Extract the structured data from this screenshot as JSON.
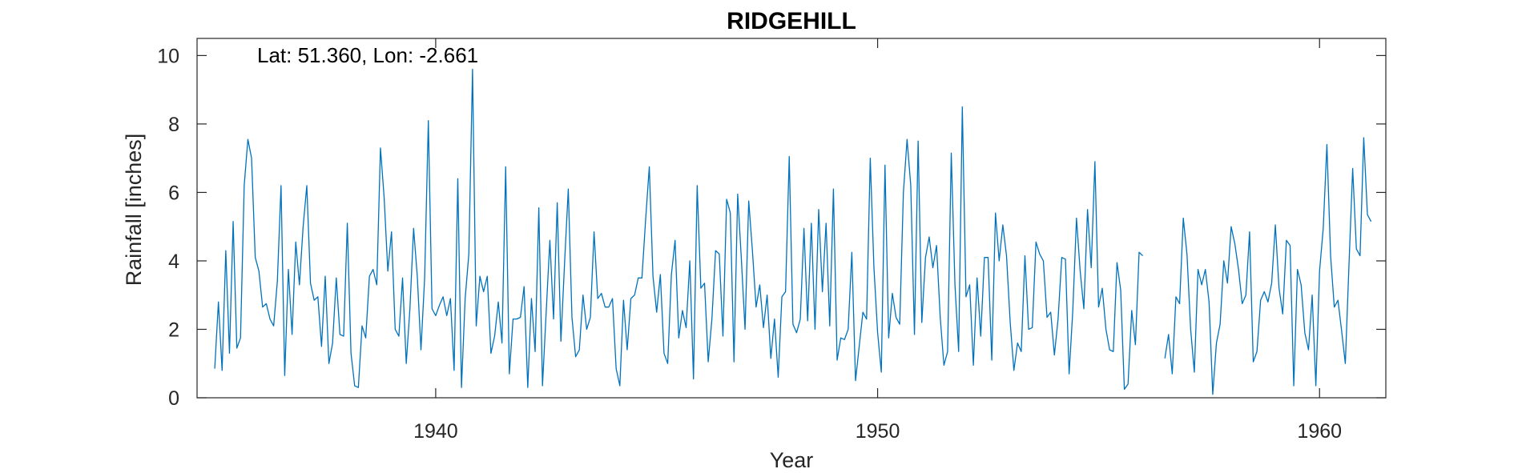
{
  "chart_data": {
    "type": "line",
    "title": "RIDGEHILL",
    "xlabel": "Year",
    "ylabel": "Rainfall [inches]",
    "annotation": "Lat: 51.360, Lon: -2.661",
    "xlim": [
      1934.6,
      1961.5
    ],
    "ylim": [
      0,
      10.5
    ],
    "xticks": [
      1940,
      1950,
      1960
    ],
    "yticks": [
      0,
      2,
      4,
      6,
      8,
      10
    ],
    "grid": false,
    "line_color": "#0072BD",
    "start_year": 1935,
    "step": "monthly",
    "series": [
      {
        "values": [
          0.85,
          2.8,
          0.8,
          4.3,
          1.3,
          5.15,
          1.45,
          1.75,
          6.2,
          7.55,
          7.0,
          4.1,
          3.7,
          2.65,
          2.75,
          2.3,
          2.1,
          3.4,
          6.2,
          0.65,
          3.75,
          1.85,
          4.55,
          3.3,
          5.0,
          6.2,
          3.35,
          2.85,
          2.95,
          1.5,
          3.55,
          1.0,
          1.6,
          3.5,
          1.85,
          1.8,
          5.1,
          1.3,
          0.35,
          0.3,
          2.1,
          1.75,
          3.55,
          3.75,
          3.3,
          7.3,
          5.85,
          3.7,
          4.85,
          2.0,
          1.8,
          3.5,
          1.0,
          2.6,
          4.95,
          3.55,
          1.4,
          3.5,
          8.1,
          2.6,
          2.4,
          2.7,
          2.95,
          2.4,
          2.9,
          0.8,
          6.4,
          0.3,
          2.9,
          4.2,
          9.6,
          2.1,
          3.55,
          3.1,
          3.55,
          1.3,
          1.8,
          2.8,
          1.6,
          6.75,
          0.7,
          2.3,
          2.3,
          2.35,
          3.25,
          0.3,
          2.9,
          1.35,
          5.55,
          0.35,
          2.5,
          4.6,
          2.3,
          5.7,
          1.65,
          3.95,
          6.1,
          2.35,
          1.2,
          1.4,
          3.0,
          2.0,
          2.35,
          4.85,
          2.9,
          3.05,
          2.65,
          2.65,
          2.9,
          0.85,
          0.35,
          2.85,
          1.4,
          2.9,
          3.0,
          3.5,
          3.5,
          5.2,
          6.75,
          3.55,
          2.5,
          3.6,
          1.3,
          1.0,
          3.6,
          4.6,
          1.75,
          2.55,
          2.05,
          4.0,
          0.55,
          6.2,
          3.2,
          3.35,
          1.05,
          2.3,
          4.3,
          4.2,
          1.8,
          5.8,
          5.4,
          1.05,
          5.95,
          4.05,
          2.0,
          5.75,
          4.3,
          2.65,
          3.3,
          2.05,
          3.0,
          1.15,
          2.3,
          0.6,
          2.95,
          3.1,
          7.05,
          2.15,
          1.9,
          2.3,
          4.95,
          2.25,
          5.1,
          2.0,
          5.5,
          3.1,
          5.1,
          2.1,
          6.1,
          1.1,
          1.75,
          1.7,
          2.0,
          4.25,
          0.5,
          1.5,
          2.5,
          2.3,
          7.0,
          3.8,
          1.9,
          0.75,
          6.8,
          1.75,
          3.05,
          2.35,
          2.15,
          6.0,
          7.55,
          6.2,
          1.85,
          7.5,
          2.2,
          4.1,
          4.7,
          3.8,
          4.45,
          2.35,
          0.95,
          1.35,
          7.15,
          3.3,
          1.35,
          8.5,
          2.95,
          3.3,
          0.95,
          3.5,
          1.8,
          4.1,
          4.1,
          1.1,
          5.4,
          4.0,
          5.05,
          4.15,
          2.2,
          0.8,
          1.6,
          1.35,
          4.15,
          2.0,
          2.05,
          4.55,
          4.2,
          4.0,
          2.35,
          2.5,
          1.25,
          2.3,
          4.1,
          4.05,
          0.7,
          2.55,
          5.25,
          3.7,
          2.6,
          5.5,
          3.8,
          6.9,
          2.65,
          3.2,
          2.0,
          1.4,
          1.35,
          3.95,
          3.15,
          0.25,
          0.4,
          2.55,
          1.55,
          4.25,
          4.15,
          null,
          null,
          null,
          null,
          null,
          1.15,
          1.85,
          0.7,
          2.95,
          2.75,
          5.25,
          4.2,
          2.0,
          0.75,
          3.75,
          3.3,
          3.75,
          2.8,
          0.1,
          1.6,
          2.15,
          4.0,
          3.35,
          5.0,
          4.5,
          3.75,
          2.75,
          3.0,
          4.85,
          1.05,
          1.35,
          2.85,
          3.1,
          2.8,
          3.35,
          5.05,
          3.2,
          2.45,
          4.6,
          4.45,
          0.35,
          3.75,
          3.3,
          1.9,
          1.4,
          3.0,
          0.35,
          3.7,
          4.95,
          7.4,
          4.15,
          2.65,
          2.85,
          1.95,
          1.0,
          3.9,
          6.7,
          4.35,
          4.15,
          7.6,
          5.35,
          5.15
        ]
      }
    ]
  }
}
